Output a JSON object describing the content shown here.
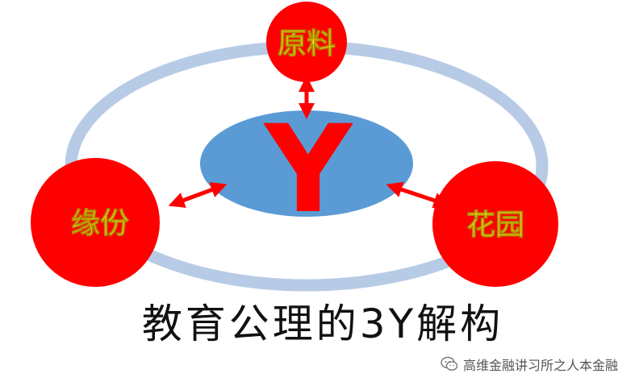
{
  "diagram": {
    "center": {
      "label": "Y"
    },
    "nodes": {
      "top": "原料",
      "left": "缘份",
      "right": "花园"
    },
    "caption": "教育公理的3Y解构"
  },
  "watermark": {
    "icon": "wechat-icon",
    "text": "高维金融讲习所之人本金融"
  },
  "colors": {
    "ring": "#b7cbe6",
    "center_disc": "#5b9bd5",
    "node_fill": "#ff0000",
    "node_text": "#f7e01a",
    "center_letter": "#ff0000",
    "arrow": "#ff0000"
  }
}
